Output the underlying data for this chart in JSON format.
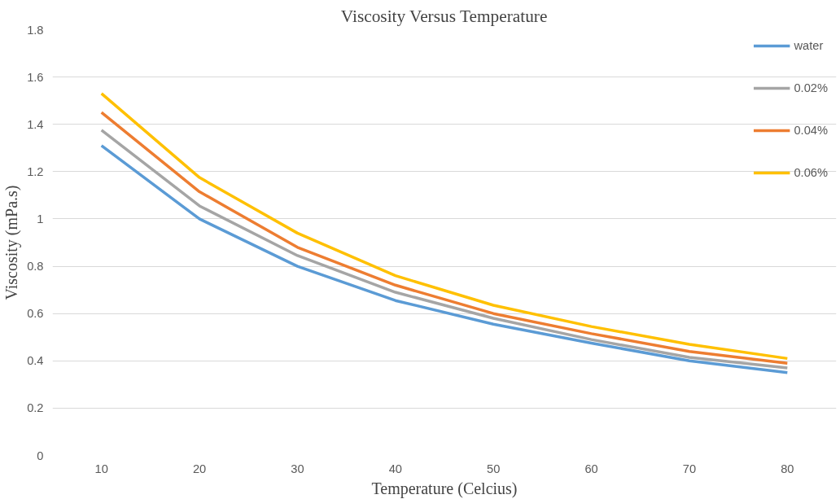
{
  "chart_data": {
    "type": "line",
    "title": "Viscosity Versus Temperature",
    "xlabel": "Temperature (Celcius)",
    "ylabel": "Viscosity (mPa.s)",
    "categories": [
      "10",
      "20",
      "30",
      "40",
      "50",
      "60",
      "70",
      "80"
    ],
    "series": [
      {
        "name": "water",
        "color": "#5b9bd5",
        "values": [
          1.31,
          1.0,
          0.8,
          0.655,
          0.555,
          0.475,
          0.4,
          0.35
        ]
      },
      {
        "name": "0.02%",
        "color": "#a5a5a5",
        "values": [
          1.375,
          1.055,
          0.845,
          0.69,
          0.58,
          0.49,
          0.415,
          0.37
        ]
      },
      {
        "name": "0.04%",
        "color": "#ed7d31",
        "values": [
          1.45,
          1.115,
          0.88,
          0.72,
          0.6,
          0.515,
          0.44,
          0.39
        ]
      },
      {
        "name": "0.06%",
        "color": "#ffc000",
        "values": [
          1.53,
          1.175,
          0.94,
          0.76,
          0.635,
          0.545,
          0.47,
          0.41
        ]
      }
    ],
    "ylim": [
      0,
      1.8
    ],
    "yticks": [
      0,
      0.2,
      0.4,
      0.6,
      0.8,
      1,
      1.2,
      1.4,
      1.6,
      1.8
    ],
    "grid": "y",
    "legend": "top right",
    "marker": "none",
    "line_style": "solid"
  }
}
